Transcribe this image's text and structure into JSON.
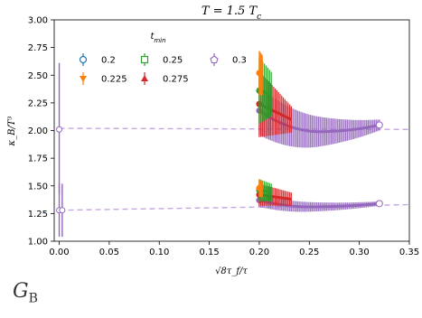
{
  "chart_data": {
    "type": "scatter",
    "title": "T = 1.5 T",
    "title_subscript": "c",
    "xlabel": "√8τ_f/τ",
    "ylabel": "κ_B/T³",
    "xlim": [
      -0.005,
      0.35
    ],
    "ylim": [
      1.0,
      3.0
    ],
    "xticks": [
      "0.00",
      "0.05",
      "0.10",
      "0.15",
      "0.20",
      "0.25",
      "0.30",
      "0.35"
    ],
    "yticks": [
      "1.00",
      "1.25",
      "1.50",
      "1.75",
      "2.00",
      "2.25",
      "2.50",
      "2.75",
      "3.00"
    ],
    "grid": false,
    "legend": {
      "title": "t",
      "title_subscript": "min",
      "placement": "top-left",
      "entries": [
        {
          "label": "0.2",
          "color": "#1f77b4",
          "marker": "circle-open"
        },
        {
          "label": "0.225",
          "color": "#ff7f0e",
          "marker": "triangle-down"
        },
        {
          "label": "0.25",
          "color": "#2ca02c",
          "marker": "square-open"
        },
        {
          "label": "0.275",
          "color": "#d62728",
          "marker": "triangle-up"
        },
        {
          "label": "0.3",
          "color": "#9467bd",
          "marker": "pentagon-open"
        }
      ]
    },
    "series": [
      {
        "name": "0.3",
        "color": "#9467bd",
        "branch": "upper",
        "x_start": 0.2,
        "x_end": 0.32,
        "y_start": 2.18,
        "y_min": 1.99,
        "y_min_x": 0.26,
        "y_end": 2.05,
        "err_start": 0.22,
        "err_end": 0.05
      },
      {
        "name": "0.3",
        "color": "#9467bd",
        "branch": "lower",
        "x_start": 0.2,
        "x_end": 0.32,
        "y_start": 1.37,
        "y_min": 1.31,
        "y_min_x": 0.25,
        "y_end": 1.34,
        "err_start": 0.06,
        "err_end": 0.02
      },
      {
        "name": "0.275",
        "color": "#d62728",
        "branch": "upper",
        "x_start": 0.2,
        "x_end": 0.232,
        "y_start": 2.24,
        "y_end": 2.1,
        "err_start": 0.3,
        "err_end": 0.12
      },
      {
        "name": "0.275",
        "color": "#d62728",
        "branch": "lower",
        "x_start": 0.2,
        "x_end": 0.232,
        "y_start": 1.42,
        "y_end": 1.38,
        "err_start": 0.1,
        "err_end": 0.06
      },
      {
        "name": "0.25",
        "color": "#2ca02c",
        "branch": "upper",
        "x_start": 0.2,
        "x_end": 0.212,
        "y_start": 2.36,
        "y_end": 2.33,
        "err_start": 0.3,
        "err_end": 0.2
      },
      {
        "name": "0.25",
        "color": "#2ca02c",
        "branch": "lower",
        "x_start": 0.2,
        "x_end": 0.212,
        "y_start": 1.46,
        "y_end": 1.44,
        "err_start": 0.1,
        "err_end": 0.08
      },
      {
        "name": "0.225",
        "color": "#ff7f0e",
        "branch": "upper",
        "x_start": 0.2,
        "x_end": 0.203,
        "y_start": 2.52,
        "y_end": 2.5,
        "err_start": 0.2,
        "err_end": 0.18
      },
      {
        "name": "0.225",
        "color": "#ff7f0e",
        "branch": "lower",
        "x_start": 0.2,
        "x_end": 0.203,
        "y_start": 1.48,
        "y_end": 1.47,
        "err_start": 0.08,
        "err_end": 0.07
      }
    ],
    "extrapolated_points": [
      {
        "x": 0.0,
        "y": 2.01,
        "yerr_low": 0.58,
        "yerr_high": 0.6,
        "color": "#9467bd"
      },
      {
        "x": 0.0,
        "y": 1.28,
        "yerr_low": 0.24,
        "yerr_high": 0.24,
        "color": "#9467bd"
      },
      {
        "x": 0.003,
        "y": 1.28,
        "yerr_low": 0.24,
        "yerr_high": 0.24,
        "color": "#9467bd"
      }
    ],
    "fit_lines": [
      {
        "x": [
          0.0,
          0.35
        ],
        "y": [
          2.02,
          2.01
        ],
        "color": "#c5a8e0",
        "style": "dashed"
      },
      {
        "x": [
          0.0,
          0.35
        ],
        "y": [
          1.28,
          1.33
        ],
        "color": "#c5a8e0",
        "style": "dashed"
      }
    ]
  },
  "caption": {
    "text": "G",
    "subscript": "B"
  }
}
